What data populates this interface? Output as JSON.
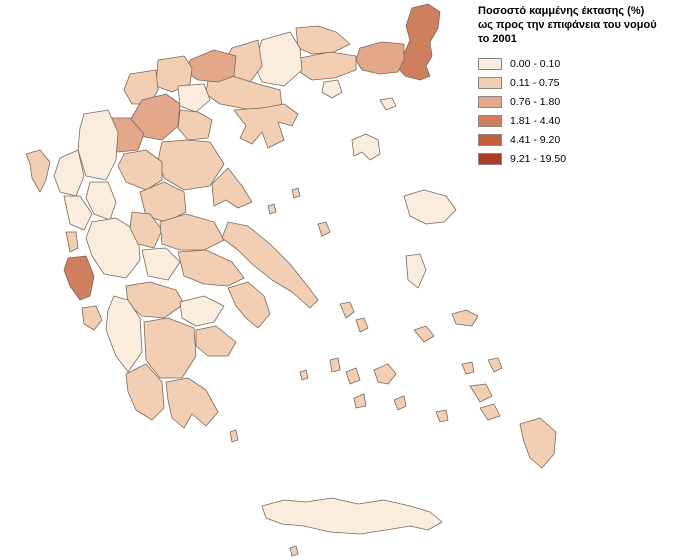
{
  "legend": {
    "title_lines": [
      "Ποσοστό καμμένης έκτασης (%)",
      "ως προς την επιφάνεια του νομού",
      "το 2001"
    ],
    "classes": [
      {
        "label": "0.00 - 0.10",
        "color": "#fbeddd"
      },
      {
        "label": "0.11 - 0.75",
        "color": "#f2cfb2"
      },
      {
        "label": "0.76 - 1.80",
        "color": "#e3a789"
      },
      {
        "label": "1.81 - 4.40",
        "color": "#d07f5e"
      },
      {
        "label": "4.41 - 9.20",
        "color": "#c4603f"
      },
      {
        "label": "9.21 - 19.50",
        "color": "#ab3d22"
      }
    ]
  },
  "map": {
    "regions": [
      {
        "name": "evros",
        "class": 3
      },
      {
        "name": "rodopi-xanthi",
        "class": 2
      },
      {
        "name": "kavala",
        "class": 1
      },
      {
        "name": "drama",
        "class": 1
      },
      {
        "name": "serres",
        "class": 0
      },
      {
        "name": "kilkis",
        "class": 1
      },
      {
        "name": "thessaloniki",
        "class": 1
      },
      {
        "name": "chalkidiki",
        "class": 1
      },
      {
        "name": "pella",
        "class": 2
      },
      {
        "name": "florina",
        "class": 1
      },
      {
        "name": "kastoria",
        "class": 1
      },
      {
        "name": "kozani",
        "class": 2
      },
      {
        "name": "grevena",
        "class": 2
      },
      {
        "name": "imathia",
        "class": 0
      },
      {
        "name": "pieria",
        "class": 1
      },
      {
        "name": "larisa",
        "class": 1
      },
      {
        "name": "magnisia",
        "class": 1
      },
      {
        "name": "trikala",
        "class": 1
      },
      {
        "name": "karditsa",
        "class": 1
      },
      {
        "name": "ioannina",
        "class": 0
      },
      {
        "name": "thesprotia",
        "class": 0
      },
      {
        "name": "preveza",
        "class": 0
      },
      {
        "name": "arta",
        "class": 0
      },
      {
        "name": "aitoloakarnania",
        "class": 0
      },
      {
        "name": "evrytania",
        "class": 1
      },
      {
        "name": "fthiotida",
        "class": 1
      },
      {
        "name": "fokida",
        "class": 0
      },
      {
        "name": "viotia",
        "class": 1
      },
      {
        "name": "attiki",
        "class": 1
      },
      {
        "name": "evia",
        "class": 1
      },
      {
        "name": "corfu",
        "class": 1
      },
      {
        "name": "lefkada",
        "class": 1
      },
      {
        "name": "kefalonia",
        "class": 3
      },
      {
        "name": "zakynthos",
        "class": 1
      },
      {
        "name": "achaia",
        "class": 1
      },
      {
        "name": "ilia",
        "class": 0
      },
      {
        "name": "korinthia",
        "class": 0
      },
      {
        "name": "argolida",
        "class": 1
      },
      {
        "name": "arkadia",
        "class": 1
      },
      {
        "name": "messinia",
        "class": 1
      },
      {
        "name": "lakonia",
        "class": 1
      },
      {
        "name": "kyklades",
        "class": 1
      },
      {
        "name": "dodekanisa",
        "class": 1
      },
      {
        "name": "lesvos",
        "class": 0
      },
      {
        "name": "chios",
        "class": 0
      },
      {
        "name": "samos",
        "class": 1
      },
      {
        "name": "thasos",
        "class": 0
      },
      {
        "name": "samothraki",
        "class": 0
      },
      {
        "name": "limnos",
        "class": 0
      },
      {
        "name": "crete",
        "class": 0
      }
    ]
  }
}
